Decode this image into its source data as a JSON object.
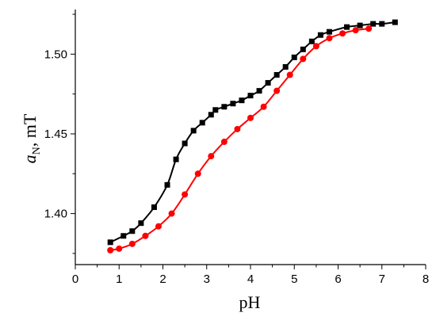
{
  "chart_data": {
    "type": "line",
    "xlabel": "pH",
    "ylabel": {
      "main": "a",
      "sub": "N",
      "unit": ", mT"
    },
    "xlim": [
      0,
      8
    ],
    "ylim": [
      1.368,
      1.528
    ],
    "xticks": [
      0,
      1,
      2,
      3,
      4,
      5,
      6,
      7,
      8
    ],
    "yticks": [
      1.4,
      1.45,
      1.5
    ],
    "ytick_labels": [
      "1.40",
      "1.45",
      "1.50"
    ],
    "grid": false,
    "series": [
      {
        "color": "#000000",
        "marker": "square",
        "x": [
          0.8,
          1.1,
          1.3,
          1.5,
          1.8,
          2.1,
          2.3,
          2.5,
          2.7,
          2.9,
          3.1,
          3.2,
          3.4,
          3.6,
          3.8,
          4.0,
          4.2,
          4.4,
          4.6,
          4.8,
          5.0,
          5.2,
          5.4,
          5.6,
          5.8,
          6.2,
          6.5,
          6.8,
          7.0,
          7.3
        ],
        "y": [
          1.382,
          1.386,
          1.389,
          1.394,
          1.404,
          1.418,
          1.434,
          1.444,
          1.452,
          1.457,
          1.462,
          1.465,
          1.467,
          1.469,
          1.471,
          1.474,
          1.477,
          1.482,
          1.487,
          1.492,
          1.498,
          1.503,
          1.508,
          1.512,
          1.514,
          1.517,
          1.518,
          1.519,
          1.519,
          1.52
        ]
      },
      {
        "color": "#ff0000",
        "marker": "circle",
        "x": [
          0.8,
          1.0,
          1.3,
          1.6,
          1.9,
          2.2,
          2.5,
          2.8,
          3.1,
          3.4,
          3.7,
          4.0,
          4.3,
          4.6,
          4.9,
          5.2,
          5.5,
          5.8,
          6.1,
          6.4,
          6.7
        ],
        "y": [
          1.377,
          1.378,
          1.381,
          1.386,
          1.392,
          1.4,
          1.412,
          1.425,
          1.436,
          1.445,
          1.453,
          1.46,
          1.467,
          1.477,
          1.487,
          1.497,
          1.505,
          1.51,
          1.513,
          1.515,
          1.516
        ]
      }
    ]
  }
}
